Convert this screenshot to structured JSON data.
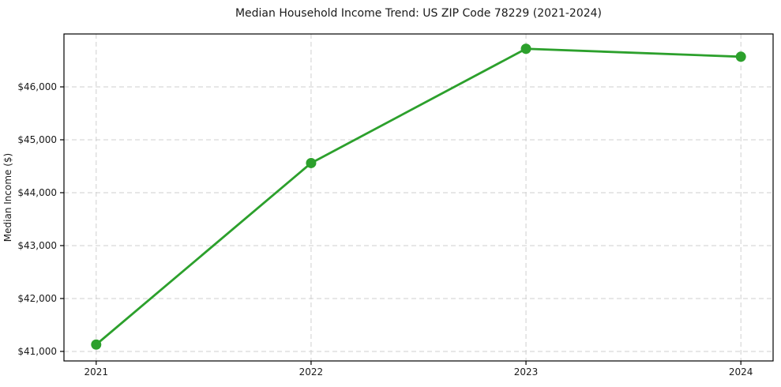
{
  "chart_data": {
    "type": "line",
    "title": "Median Household Income Trend: US ZIP Code 78229 (2021-2024)",
    "xlabel": "",
    "ylabel": "Median Income ($)",
    "x": [
      2021,
      2022,
      2023,
      2024
    ],
    "x_tick_labels": [
      "2021",
      "2022",
      "2023",
      "2024"
    ],
    "series": [
      {
        "name": "Median Household Income",
        "color": "#2ca02c",
        "marker": "circle",
        "values": [
          41130,
          44560,
          46720,
          46570
        ]
      }
    ],
    "y_ticks": [
      41000,
      42000,
      43000,
      44000,
      45000,
      46000
    ],
    "y_tick_labels": [
      "$41,000",
      "$42,000",
      "$43,000",
      "$44,000",
      "$45,000",
      "$46,000"
    ],
    "xlim": [
      2020.85,
      2024.15
    ],
    "ylim": [
      40820,
      47000
    ],
    "grid": true,
    "grid_style": "dashed",
    "grid_color": "#cfcfcf",
    "spine_color": "#000000",
    "background": "#ffffff",
    "legend_position": "none"
  }
}
